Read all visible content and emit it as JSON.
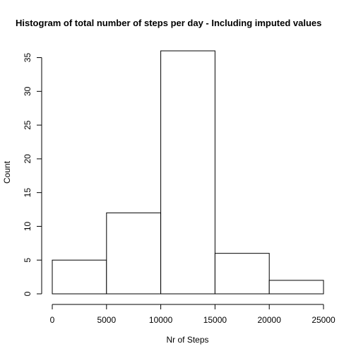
{
  "chart_data": {
    "type": "bar",
    "title": "Histogram of total number of steps per day - Including imputed values",
    "xlabel": "Nr of Steps",
    "ylabel": "Count",
    "bins": [
      {
        "from": 0,
        "to": 5000,
        "count": 5
      },
      {
        "from": 5000,
        "to": 10000,
        "count": 12
      },
      {
        "from": 10000,
        "to": 15000,
        "count": 36
      },
      {
        "from": 15000,
        "to": 20000,
        "count": 6
      },
      {
        "from": 20000,
        "to": 25000,
        "count": 2
      }
    ],
    "xticks": [
      0,
      5000,
      10000,
      15000,
      20000,
      25000
    ],
    "yticks": [
      0,
      5,
      10,
      15,
      20,
      25,
      30,
      35
    ],
    "xlim": [
      0,
      25000
    ],
    "ylim": [
      0,
      36
    ],
    "grid": false,
    "bar_fill": "#ffffff",
    "bar_stroke": "#000000"
  }
}
